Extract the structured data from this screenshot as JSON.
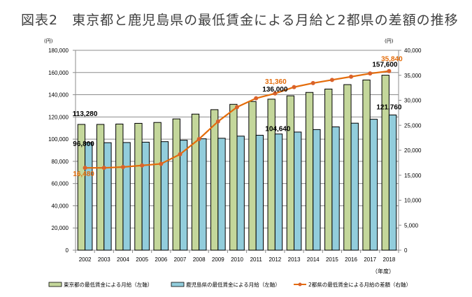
{
  "chart_data": {
    "type": "bar+line",
    "title": "図表2　東京都と鹿児島県の最低賃金による月給と2都県の差額の推移",
    "categories": [
      "2002",
      "2003",
      "2004",
      "2005",
      "2006",
      "2007",
      "2008",
      "2009",
      "2010",
      "2011",
      "2012",
      "2013",
      "2014",
      "2015",
      "2016",
      "2017",
      "2018"
    ],
    "x_unit": "（年度）",
    "left_axis": {
      "unit": "(円)",
      "ylim": [
        0,
        180000
      ],
      "ticks": [
        "0",
        "20,000",
        "40,000",
        "60,000",
        "80,000",
        "100,000",
        "120,000",
        "140,000",
        "160,000",
        "180,000"
      ]
    },
    "right_axis": {
      "unit": "(円)",
      "ylim": [
        0,
        40000
      ],
      "ticks": [
        "0",
        "5,000",
        "10,000",
        "15,000",
        "20,000",
        "25,000",
        "30,000",
        "35,000",
        "40,000"
      ]
    },
    "grid": true,
    "legend_position": "bottom",
    "series": [
      {
        "name": "東京都の最低賃金による月給（左軸）",
        "type": "bar",
        "axis": "left",
        "color": "#c4d79b",
        "values": [
          113280,
          113280,
          113600,
          114240,
          115040,
          118240,
          122560,
          126560,
          131360,
          133920,
          136000,
          139040,
          142080,
          145120,
          149120,
          153280,
          157600
        ]
      },
      {
        "name": "鹿児島県の最低賃金による月給（左軸）",
        "type": "bar",
        "axis": "left",
        "color": "#92cddc",
        "values": [
          96800,
          96800,
          96960,
          97280,
          97760,
          99040,
          100320,
          100800,
          102720,
          103520,
          104640,
          106400,
          108640,
          111040,
          114400,
          117920,
          121760
        ]
      },
      {
        "name": "2都県の最低賃金による月給の差額（右軸）",
        "type": "line",
        "axis": "right",
        "color": "#e46c0a",
        "values": [
          16480,
          16480,
          16640,
          16960,
          17280,
          19200,
          22240,
          25760,
          28640,
          30400,
          31360,
          32640,
          33440,
          34080,
          34720,
          35360,
          35840
        ]
      }
    ],
    "data_labels": [
      {
        "series": 0,
        "index": 0,
        "text": "113,280"
      },
      {
        "series": 1,
        "index": 0,
        "text": "96,800"
      },
      {
        "series": 2,
        "index": 0,
        "text": "16,480"
      },
      {
        "series": 0,
        "index": 10,
        "text": "136,000"
      },
      {
        "series": 2,
        "index": 10,
        "text": "31,360"
      },
      {
        "series": 1,
        "index": 10,
        "text": "104,640"
      },
      {
        "series": 0,
        "index": 16,
        "text": "157,600"
      },
      {
        "series": 2,
        "index": 16,
        "text": "35,840"
      },
      {
        "series": 1,
        "index": 16,
        "text": "121,760"
      }
    ]
  }
}
